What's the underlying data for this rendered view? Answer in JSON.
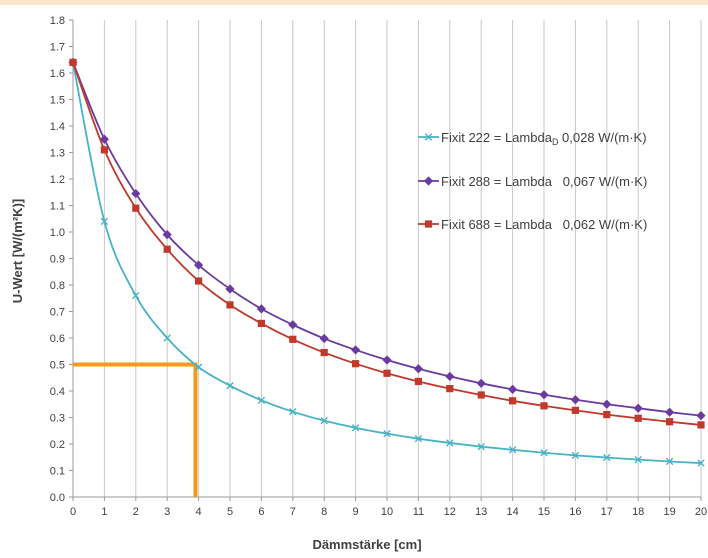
{
  "colors": {
    "top_stripe": "#fbe3c9",
    "grid": "#c8c8c8",
    "axis": "#9a9a9a",
    "text": "#404040",
    "marker_line": "#f39a1e"
  },
  "chart_data": {
    "type": "line",
    "xlabel": "Dämmstärke [cm]",
    "ylabel": "U-Wert [W/(m²K)]",
    "xlim": [
      0,
      20
    ],
    "ylim": [
      0,
      1.8
    ],
    "grid": "vertical",
    "legend_position": "right",
    "x_ticks": [
      "0",
      "1",
      "2",
      "3",
      "4",
      "5",
      "6",
      "7",
      "8",
      "9",
      "10",
      "11",
      "12",
      "13",
      "14",
      "15",
      "16",
      "17",
      "18",
      "19",
      "20"
    ],
    "y_ticks": [
      "0.0",
      "0.1",
      "0.2",
      "0.3",
      "0.4",
      "0.5",
      "0.6",
      "0.7",
      "0.8",
      "0.9",
      "1.0",
      "1.1",
      "1.2",
      "1.3",
      "1.4",
      "1.5",
      "1.6",
      "1.7",
      "1.8"
    ],
    "x": [
      0,
      1,
      2,
      3,
      4,
      5,
      6,
      7,
      8,
      9,
      10,
      11,
      12,
      13,
      14,
      15,
      16,
      17,
      18,
      19,
      20
    ],
    "series": [
      {
        "name": "Fixit 222 = Lambda",
        "name_sub": "D",
        "name_suffix": " 0,028 W/(m·K)",
        "color": "#46b3c6",
        "marker": "x",
        "values": [
          1.64,
          1.04,
          0.76,
          0.6,
          0.49,
          0.42,
          0.365,
          0.322,
          0.288,
          0.261,
          0.239,
          0.22,
          0.204,
          0.19,
          0.178,
          0.167,
          0.157,
          0.149,
          0.141,
          0.134,
          0.128
        ]
      },
      {
        "name": "Fixit 288 = Lambda",
        "name_sub": "",
        "name_suffix": "   0,067 W/(m·K)",
        "color": "#6a3aa0",
        "marker": "diamond",
        "values": [
          1.64,
          1.35,
          1.145,
          0.99,
          0.875,
          0.785,
          0.71,
          0.65,
          0.598,
          0.555,
          0.517,
          0.484,
          0.455,
          0.429,
          0.406,
          0.386,
          0.367,
          0.35,
          0.335,
          0.32,
          0.307
        ]
      },
      {
        "name": "Fixit 688 = Lambda",
        "name_sub": "",
        "name_suffix": "   0,062 W/(m·K)",
        "color": "#c0392b",
        "marker": "square",
        "values": [
          1.64,
          1.31,
          1.09,
          0.935,
          0.815,
          0.725,
          0.655,
          0.595,
          0.545,
          0.503,
          0.467,
          0.436,
          0.409,
          0.385,
          0.363,
          0.344,
          0.327,
          0.311,
          0.297,
          0.284,
          0.272
        ]
      }
    ],
    "annotation": {
      "type": "reference-lines",
      "x": 3.9,
      "y": 0.5
    }
  }
}
